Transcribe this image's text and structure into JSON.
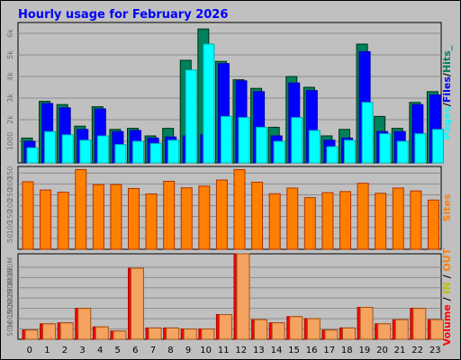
{
  "chart_data": [
    {
      "panel": "hits",
      "type": "bar",
      "title": "Hourly usage for February 2026",
      "categories": [
        "0",
        "1",
        "2",
        "3",
        "4",
        "5",
        "6",
        "7",
        "8",
        "9",
        "10",
        "11",
        "12",
        "13",
        "14",
        "15",
        "16",
        "17",
        "18",
        "19",
        "20",
        "21",
        "22",
        "23"
      ],
      "y_ticks": [
        "1000",
        "2k",
        "3k",
        "4k",
        "5k",
        "6k"
      ],
      "ylim": [
        0,
        6500
      ],
      "legend": "Pages / Files / Hits",
      "series": [
        {
          "name": "Hits",
          "color": "#00805C",
          "values": [
            1150,
            2850,
            2700,
            1700,
            2600,
            1550,
            1600,
            1250,
            1600,
            4750,
            6200,
            4700,
            3850,
            3450,
            1650,
            4000,
            3500,
            1250,
            1550,
            5500,
            2150,
            1600,
            2800,
            3300
          ]
        },
        {
          "name": "Files",
          "color": "#0000FF",
          "values": [
            1000,
            2750,
            2550,
            1550,
            2500,
            1450,
            1500,
            1150,
            1200,
            1250,
            1300,
            4600,
            3800,
            3300,
            1250,
            3700,
            3350,
            1050,
            1150,
            5150,
            1450,
            1450,
            2700,
            3150
          ]
        },
        {
          "name": "Pages",
          "color": "#00FFFF",
          "values": [
            700,
            1450,
            1300,
            1050,
            1250,
            850,
            1000,
            900,
            1050,
            4300,
            5500,
            2150,
            2100,
            1650,
            1000,
            2100,
            1500,
            750,
            1050,
            2800,
            1350,
            1000,
            1350,
            1550
          ]
        }
      ]
    },
    {
      "panel": "sites",
      "type": "bar",
      "categories": [
        "0",
        "1",
        "2",
        "3",
        "4",
        "5",
        "6",
        "7",
        "8",
        "9",
        "10",
        "11",
        "12",
        "13",
        "14",
        "15",
        "16",
        "17",
        "18",
        "19",
        "20",
        "21",
        "22",
        "23"
      ],
      "y_ticks": [
        "50",
        "100",
        "150",
        "200",
        "250",
        "300",
        "350"
      ],
      "ylim": [
        0,
        380
      ],
      "legend": "Sites",
      "series": [
        {
          "name": "Sites",
          "color": "#FF8000",
          "values": [
            310,
            272,
            262,
            366,
            297,
            297,
            279,
            254,
            312,
            282,
            290,
            318,
            366,
            308,
            255,
            281,
            237,
            260,
            265,
            303,
            257,
            281,
            268,
            226
          ]
        }
      ]
    },
    {
      "panel": "volume",
      "type": "bar",
      "categories": [
        "0",
        "1",
        "2",
        "3",
        "4",
        "5",
        "6",
        "7",
        "8",
        "9",
        "10",
        "11",
        "12",
        "13",
        "14",
        "15",
        "16",
        "17",
        "18",
        "19",
        "20",
        "21",
        "22",
        "23"
      ],
      "y_ticks": [
        "50M",
        "100M",
        "150M",
        "200M",
        "250M",
        "300M",
        "350M"
      ],
      "ylim": [
        0,
        415
      ],
      "legend": "Volume / IN / OUT",
      "series": [
        {
          "name": "Volume",
          "color": "#FF0000",
          "values": [
            45,
            75,
            80,
            150,
            60,
            40,
            345,
            55,
            55,
            50,
            50,
            120,
            415,
            95,
            80,
            110,
            100,
            45,
            55,
            155,
            75,
            95,
            150,
            95
          ]
        },
        {
          "name": "IN",
          "color": "#FFFF00",
          "values": [
            0,
            0,
            0,
            0,
            0,
            0,
            0,
            0,
            0,
            0,
            0,
            0,
            0,
            0,
            0,
            0,
            0,
            0,
            0,
            0,
            0,
            0,
            0,
            0
          ]
        },
        {
          "name": "OUT",
          "color": "#FF8000",
          "values": [
            45,
            75,
            80,
            150,
            60,
            40,
            345,
            55,
            55,
            50,
            50,
            120,
            415,
            95,
            80,
            110,
            100,
            45,
            55,
            155,
            75,
            95,
            150,
            95
          ]
        }
      ]
    }
  ]
}
